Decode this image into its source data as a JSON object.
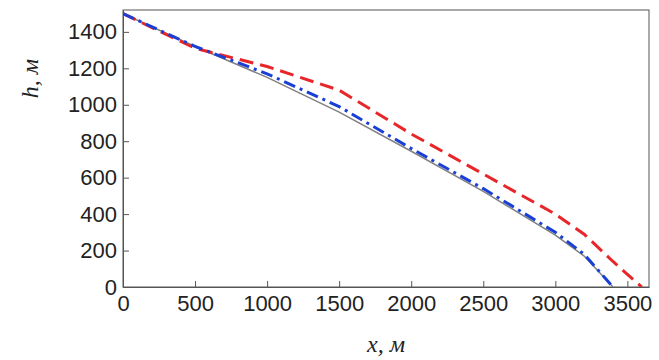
{
  "chart_data": {
    "type": "line",
    "x_label": "x, м",
    "y_label": "h, м",
    "x": [
      0,
      500,
      1000,
      1500,
      2000,
      2500,
      3000,
      3200,
      3400,
      3600
    ],
    "series": [
      {
        "color": "#808080",
        "line_style": "solid",
        "values": [
          1500,
          1320,
          1150,
          960,
          745,
          525,
          285,
          170,
          0,
          null
        ]
      },
      {
        "color": "#e8262a",
        "line_style": "dashed",
        "values": [
          1500,
          1310,
          1210,
          1080,
          840,
          620,
          400,
          290,
          140,
          0
        ]
      },
      {
        "color": "#1a3fd6",
        "line_style": "dashdot",
        "values": [
          1500,
          1320,
          1170,
          990,
          760,
          540,
          300,
          180,
          0,
          null
        ]
      }
    ],
    "xlim": [
      0,
      3650
    ],
    "ylim": [
      0,
      1520
    ],
    "xticks": [
      0,
      500,
      1000,
      1500,
      2000,
      2500,
      3000,
      3500
    ],
    "yticks": [
      0,
      200,
      400,
      600,
      800,
      1000,
      1200,
      1400
    ],
    "grid": false
  }
}
